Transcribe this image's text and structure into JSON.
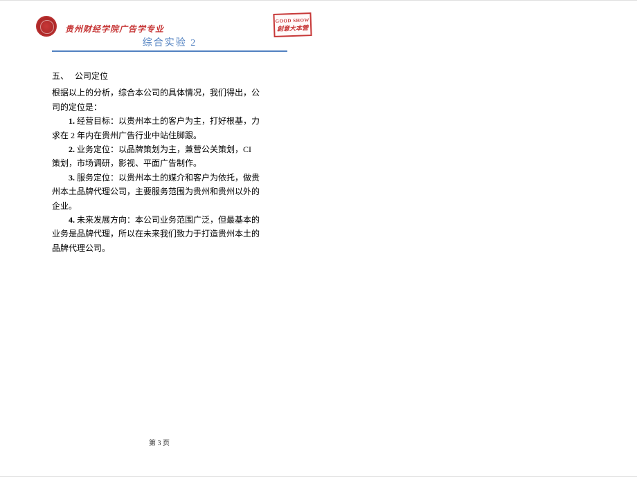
{
  "header": {
    "school_name": "贵州财经学院广告学专业",
    "doc_title": "综合实验 2",
    "stamp_line1": "GOOD SHOW",
    "stamp_line2": "創意大本營"
  },
  "content": {
    "section_number": "五、",
    "section_title": "公司定位",
    "intro": "根据以上的分析，综合本公司的具体情况，我们得出，公司的定位是：",
    "items": [
      {
        "num": "1.",
        "text": " 经营目标：以贵州本土的客户为主，打好根基，力求在 2 年内在贵州广告行业中站住脚跟。"
      },
      {
        "num": "2.",
        "text": " 业务定位：以品牌策划为主，兼营公关策划，CI 策划，市场调研，影视、平面广告制作。"
      },
      {
        "num": "3.",
        "text": " 服务定位：以贵州本土的媒介和客户为依托，做贵州本土品牌代理公司，主要服务范围为贵州和贵州以外的企业。"
      },
      {
        "num": "4.",
        "text": " 未来发展方向：本公司业务范围广泛，但最基本的业务是品牌代理，所以在未来我们致力于打造贵州本土的品牌代理公司。"
      }
    ]
  },
  "footer": {
    "page_label": "第 3 页"
  },
  "colors": {
    "accent_blue": "#5080c0",
    "logo_red": "#c73838",
    "text_black": "#000000",
    "background": "#ffffff"
  }
}
